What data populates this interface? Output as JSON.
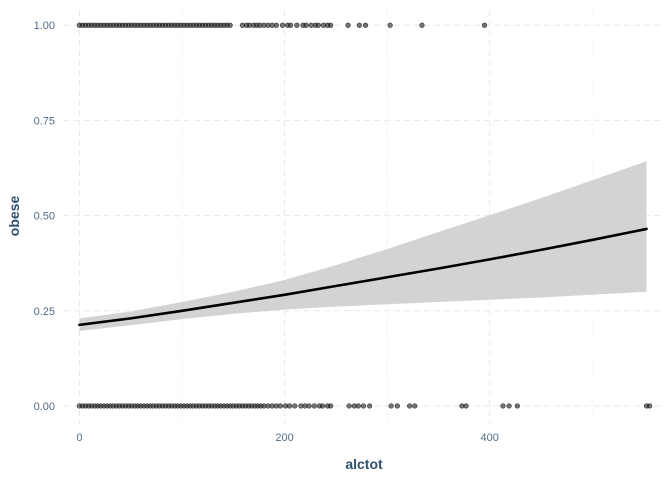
{
  "chart_data": {
    "type": "scatter",
    "xlabel": "alctot",
    "ylabel": "obese",
    "xlim": [
      -15,
      570
    ],
    "ylim": [
      -0.05,
      1.04
    ],
    "x_ticks": [
      0,
      200,
      400
    ],
    "y_ticks": [
      0,
      0.25,
      0.5,
      0.75,
      1.0
    ],
    "x_tick_labels": [
      "0",
      "200",
      "400"
    ],
    "y_tick_labels": [
      "0.00",
      "0.25",
      "0.50",
      "0.75",
      "1.00"
    ],
    "grid": true,
    "legend": "none",
    "colors": {
      "points": "#1a1a1a",
      "fit_line": "#000000",
      "ribbon": "#d3d3d3",
      "grid": "#e8e8e8",
      "tick_label": "#4f6b86",
      "axis_title": "#2f4f6f"
    },
    "points_y1": [
      0,
      3,
      6,
      9,
      12,
      15,
      18,
      21,
      24,
      27,
      30,
      33,
      36,
      39,
      42,
      45,
      48,
      51,
      54,
      57,
      60,
      63,
      66,
      69,
      72,
      75,
      78,
      81,
      84,
      87,
      90,
      93,
      96,
      99,
      102,
      105,
      108,
      111,
      114,
      117,
      120,
      123,
      126,
      129,
      132,
      135,
      138,
      141,
      144,
      147,
      159,
      163,
      166,
      170,
      173,
      176,
      180,
      184,
      188,
      192,
      198,
      203,
      206,
      212,
      218,
      221,
      226,
      230,
      233,
      238,
      242,
      245,
      262,
      273,
      279,
      303,
      334,
      395
    ],
    "points_y0": [
      0,
      3,
      6,
      9,
      12,
      15,
      18,
      21,
      24,
      27,
      30,
      33,
      36,
      39,
      42,
      45,
      48,
      51,
      54,
      57,
      60,
      63,
      66,
      69,
      72,
      75,
      78,
      81,
      84,
      87,
      90,
      93,
      96,
      99,
      102,
      105,
      108,
      111,
      114,
      117,
      120,
      123,
      126,
      129,
      132,
      135,
      138,
      141,
      144,
      147,
      150,
      153,
      156,
      159,
      162,
      165,
      168,
      171,
      174,
      177,
      180,
      184,
      188,
      192,
      196,
      201,
      205,
      210,
      216,
      220,
      224,
      229,
      234,
      237,
      242,
      245,
      263,
      268,
      272,
      277,
      283,
      304,
      310,
      322,
      327,
      373,
      377,
      413,
      419,
      427,
      553,
      556
    ],
    "fit": {
      "x": [
        0,
        50,
        100,
        150,
        200,
        250,
        300,
        350,
        400,
        450,
        500,
        553
      ],
      "y": [
        0.213,
        0.23,
        0.25,
        0.271,
        0.292,
        0.315,
        0.338,
        0.361,
        0.385,
        0.41,
        0.436,
        0.465
      ],
      "lower": [
        0.197,
        0.212,
        0.228,
        0.242,
        0.253,
        0.261,
        0.267,
        0.273,
        0.279,
        0.285,
        0.292,
        0.3
      ],
      "upper": [
        0.23,
        0.248,
        0.273,
        0.3,
        0.331,
        0.37,
        0.412,
        0.457,
        0.501,
        0.546,
        0.593,
        0.643
      ]
    }
  }
}
